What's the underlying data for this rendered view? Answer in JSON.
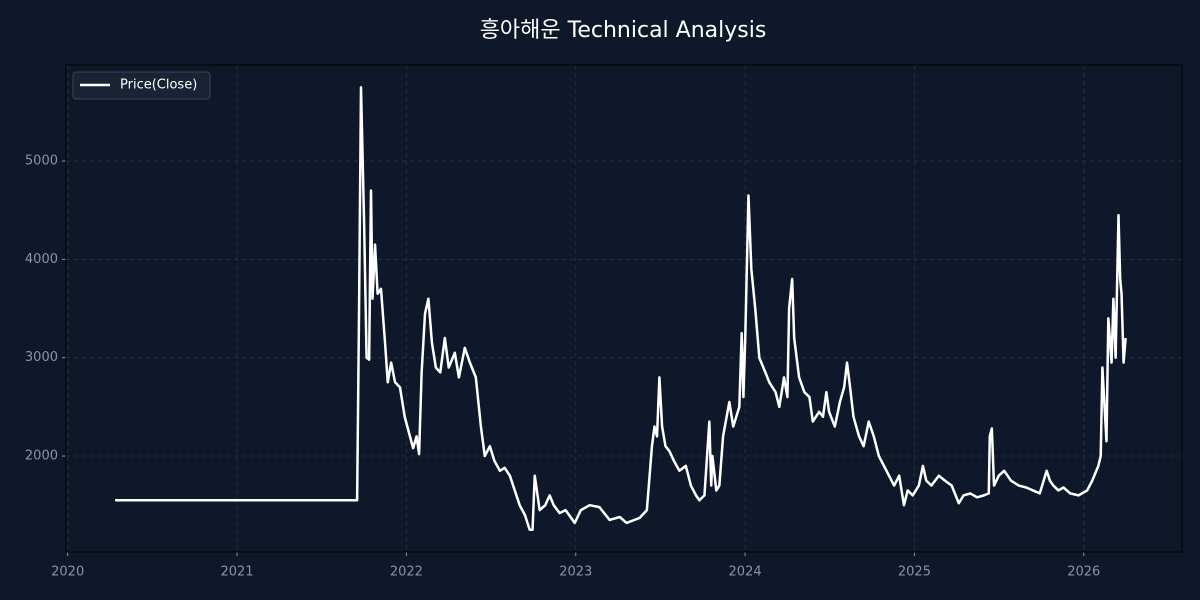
{
  "chart_data": {
    "type": "line",
    "title": "흥아해운 Technical Analysis",
    "x": [
      2020.28,
      2021.709,
      2021.72,
      2021.732,
      2021.75,
      2021.765,
      2021.78,
      2021.791,
      2021.8,
      2021.815,
      2021.83,
      2021.85,
      2021.874,
      2021.89,
      2021.91,
      2021.933,
      2021.962,
      2021.99,
      2022.021,
      2022.04,
      2022.06,
      2022.075,
      2022.09,
      2022.11,
      2022.13,
      2022.151,
      2022.174,
      2022.2,
      2022.227,
      2022.25,
      2022.286,
      2022.31,
      2022.345,
      2022.375,
      2022.41,
      2022.44,
      2022.463,
      2022.493,
      2022.52,
      2022.552,
      2022.58,
      2022.611,
      2022.64,
      2022.669,
      2022.7,
      2022.728,
      2022.745,
      2022.758,
      2022.787,
      2022.82,
      2022.846,
      2022.87,
      2022.905,
      2022.94,
      2022.994,
      2023.03,
      2023.082,
      2023.14,
      2023.2,
      2023.26,
      2023.3,
      2023.377,
      2023.42,
      2023.45,
      2023.465,
      2023.48,
      2023.494,
      2023.51,
      2023.53,
      2023.553,
      2023.58,
      2023.612,
      2023.65,
      2023.68,
      2023.71,
      2023.73,
      2023.76,
      2023.789,
      2023.8,
      2023.807,
      2023.83,
      2023.848,
      2023.87,
      2023.907,
      2023.93,
      2023.966,
      2023.98,
      2023.99,
      2024.001,
      2024.02,
      2024.037,
      2024.06,
      2024.084,
      2024.12,
      2024.143,
      2024.18,
      2024.202,
      2024.23,
      2024.25,
      2024.26,
      2024.278,
      2024.29,
      2024.319,
      2024.35,
      2024.38,
      2024.4,
      2024.437,
      2024.46,
      2024.48,
      2024.496,
      2024.53,
      2024.56,
      2024.585,
      2024.602,
      2024.62,
      2024.64,
      2024.673,
      2024.7,
      2024.73,
      2024.76,
      2024.79,
      2024.82,
      2024.85,
      2024.88,
      2024.91,
      2024.938,
      2024.96,
      2024.99,
      2025.026,
      2025.05,
      2025.07,
      2025.1,
      2025.144,
      2025.18,
      2025.22,
      2025.262,
      2025.29,
      2025.33,
      2025.37,
      2025.41,
      2025.439,
      2025.445,
      2025.457,
      2025.47,
      2025.498,
      2025.53,
      2025.57,
      2025.616,
      2025.66,
      2025.7,
      2025.74,
      2025.781,
      2025.8,
      2025.82,
      2025.85,
      2025.88,
      2025.92,
      2025.969,
      2026.02,
      2026.05,
      2026.086,
      2026.1,
      2026.11,
      2026.134,
      2026.145,
      2026.164,
      2026.175,
      2026.188,
      2026.205,
      2026.215,
      2026.223,
      2026.235,
      2026.247
    ],
    "series": [
      {
        "name": "Price(Close)",
        "color": "#ffffff",
        "values": [
          1550,
          1550,
          3400,
          5750,
          4400,
          3000,
          2980,
          4700,
          3600,
          4150,
          3650,
          3700,
          3150,
          2750,
          2950,
          2750,
          2700,
          2400,
          2200,
          2080,
          2200,
          2020,
          2850,
          3450,
          3600,
          3150,
          2900,
          2850,
          3200,
          2900,
          3050,
          2800,
          3100,
          2950,
          2800,
          2300,
          2000,
          2100,
          1950,
          1850,
          1880,
          1800,
          1650,
          1500,
          1400,
          1250,
          1250,
          1800,
          1450,
          1500,
          1600,
          1500,
          1420,
          1450,
          1320,
          1450,
          1500,
          1480,
          1350,
          1380,
          1320,
          1370,
          1450,
          2100,
          2300,
          2200,
          2800,
          2300,
          2100,
          2050,
          1950,
          1850,
          1900,
          1700,
          1600,
          1550,
          1600,
          2350,
          1700,
          2000,
          1650,
          1700,
          2200,
          2550,
          2300,
          2500,
          3250,
          2600,
          3200,
          4650,
          3900,
          3500,
          3000,
          2850,
          2750,
          2650,
          2500,
          2800,
          2600,
          3500,
          3800,
          3200,
          2800,
          2650,
          2600,
          2350,
          2450,
          2400,
          2650,
          2450,
          2300,
          2550,
          2700,
          2950,
          2700,
          2400,
          2200,
          2100,
          2350,
          2200,
          2000,
          1900,
          1800,
          1700,
          1800,
          1500,
          1650,
          1600,
          1700,
          1900,
          1750,
          1700,
          1800,
          1750,
          1700,
          1520,
          1600,
          1620,
          1580,
          1600,
          1620,
          2200,
          2280,
          1700,
          1800,
          1850,
          1750,
          1700,
          1680,
          1650,
          1620,
          1850,
          1750,
          1700,
          1650,
          1680,
          1620,
          1600,
          1650,
          1750,
          1900,
          2000,
          2900,
          2150,
          3400,
          2950,
          3600,
          3000,
          4450,
          3800,
          3650,
          2950,
          3200
        ]
      }
    ],
    "xlim": [
      2019.99,
      2026.58
    ],
    "xticks": [
      2020,
      2021,
      2022,
      2023,
      2024,
      2025,
      2026
    ],
    "ylim": [
      1024,
      5977
    ],
    "yticks": [
      2000,
      3000,
      4000,
      5000
    ],
    "grid": true,
    "legend": "upper left"
  }
}
